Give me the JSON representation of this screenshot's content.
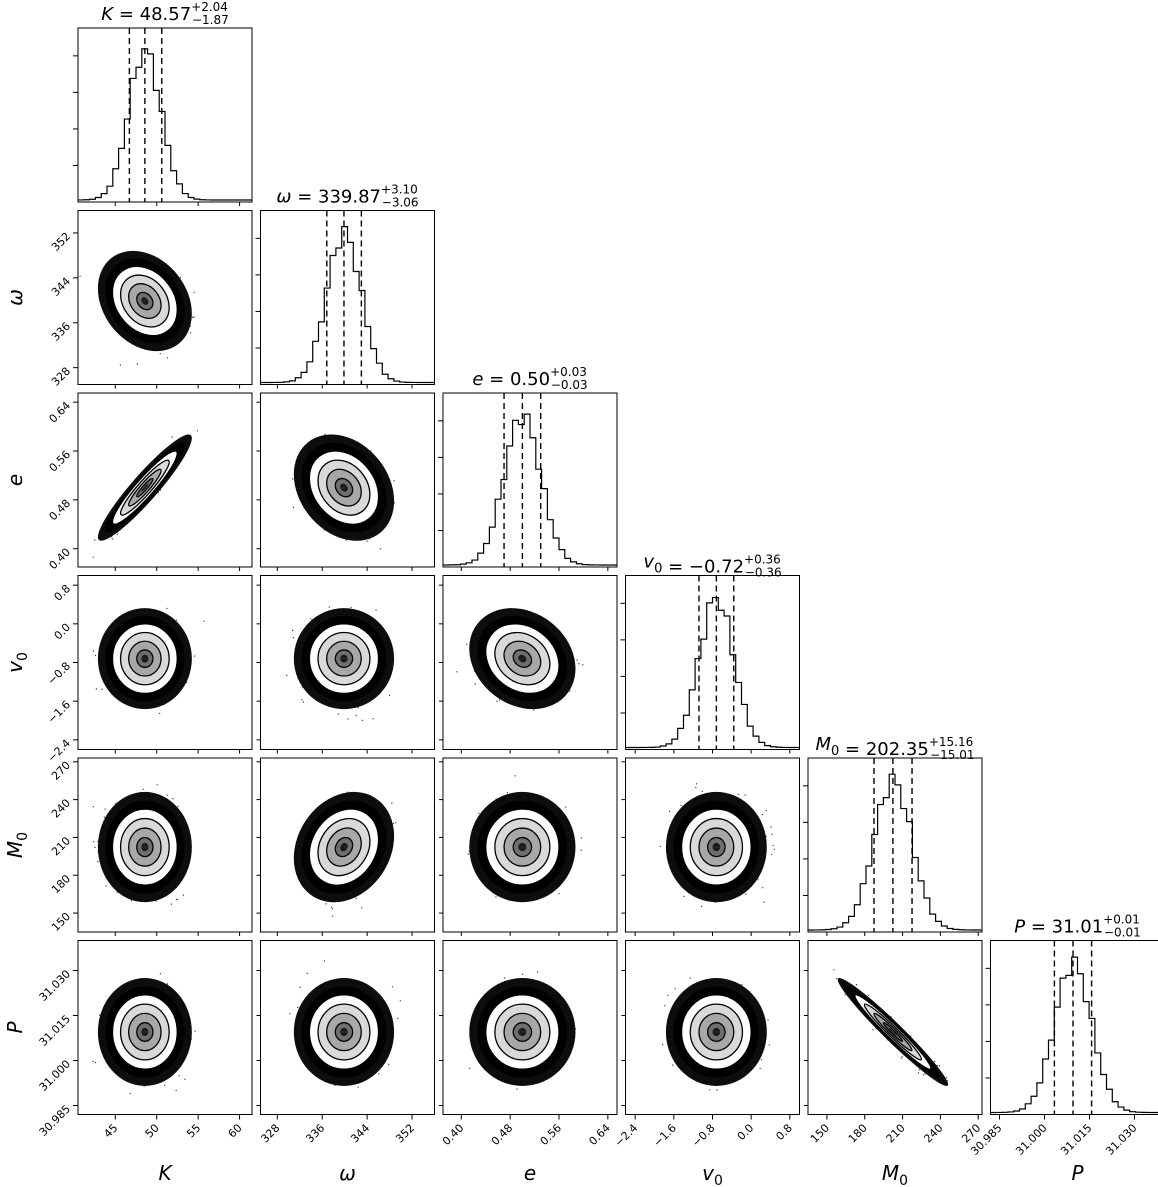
{
  "chart_data": {
    "type": "scatter",
    "subtype": "corner_plot",
    "parameters": [
      {
        "key": "K",
        "label": "K",
        "sub": "",
        "title_lhs": "K",
        "median_text": "48.57",
        "plus_text": "+2.04",
        "minus_text": "−1.87",
        "median": 48.57,
        "plus": 2.04,
        "minus": 1.87,
        "range": [
          40.5,
          61.5
        ],
        "ticks": [
          45,
          50,
          55,
          60
        ],
        "tick_labels": [
          "45",
          "50",
          "55",
          "60"
        ]
      },
      {
        "key": "omega",
        "label": "ω",
        "sub": "",
        "title_lhs": "ω",
        "median_text": "339.87",
        "plus_text": "+3.10",
        "minus_text": "−3.06",
        "median": 339.87,
        "plus": 3.1,
        "minus": 3.06,
        "range": [
          325,
          356
        ],
        "ticks": [
          328,
          336,
          344,
          352
        ],
        "tick_labels": [
          "328",
          "336",
          "344",
          "352"
        ]
      },
      {
        "key": "e",
        "label": "e",
        "sub": "",
        "title_lhs": "e",
        "median_text": "0.50",
        "plus_text": "+0.03",
        "minus_text": "−0.03",
        "median": 0.5,
        "plus": 0.03,
        "minus": 0.03,
        "range": [
          0.37,
          0.655
        ],
        "ticks": [
          0.4,
          0.48,
          0.56,
          0.64
        ],
        "tick_labels": [
          "0.40",
          "0.48",
          "0.56",
          "0.64"
        ]
      },
      {
        "key": "v0",
        "label": "v",
        "sub": "0",
        "title_lhs": "v",
        "title_sub": "0",
        "median_text": "−0.72",
        "plus_text": "+0.36",
        "minus_text": "−0.36",
        "median": -0.72,
        "plus": 0.36,
        "minus": 0.36,
        "range": [
          -2.6,
          1.0
        ],
        "ticks": [
          -2.4,
          -1.6,
          -0.8,
          0.0,
          0.8
        ],
        "tick_labels": [
          "−2.4",
          "−1.6",
          "−0.8",
          "0.0",
          "0.8"
        ]
      },
      {
        "key": "M0",
        "label": "M",
        "sub": "0",
        "title_lhs": "M",
        "title_sub": "0",
        "median_text": "202.35",
        "plus_text": "+15.16",
        "minus_text": "−15.01",
        "median": 202.35,
        "plus": 15.16,
        "minus": 15.01,
        "range": [
          135,
          273
        ],
        "ticks": [
          150,
          180,
          210,
          240,
          270
        ],
        "tick_labels": [
          "150",
          "180",
          "210",
          "240",
          "270"
        ]
      },
      {
        "key": "P",
        "label": "P",
        "sub": "",
        "title_lhs": "P",
        "median_text": "31.01",
        "plus_text": "+0.01",
        "minus_text": "−0.01",
        "median": 31.0095,
        "plus": 0.0062,
        "minus": 0.0062,
        "range": [
          30.982,
          31.04
        ],
        "ticks": [
          30.985,
          31.0,
          31.015,
          31.03
        ],
        "tick_labels": [
          "30.985",
          "31.000",
          "31.015",
          "31.030"
        ]
      }
    ],
    "correlations": {
      "K-e": 0.93,
      "M0-P": -0.97,
      "K-omega": -0.25,
      "omega-e": -0.25,
      "e-v0": -0.2,
      "omega-M0": 0.2
    },
    "quantiles": [
      0.16,
      0.5,
      0.84
    ],
    "histogram_style": "step",
    "contour_levels": 4
  }
}
